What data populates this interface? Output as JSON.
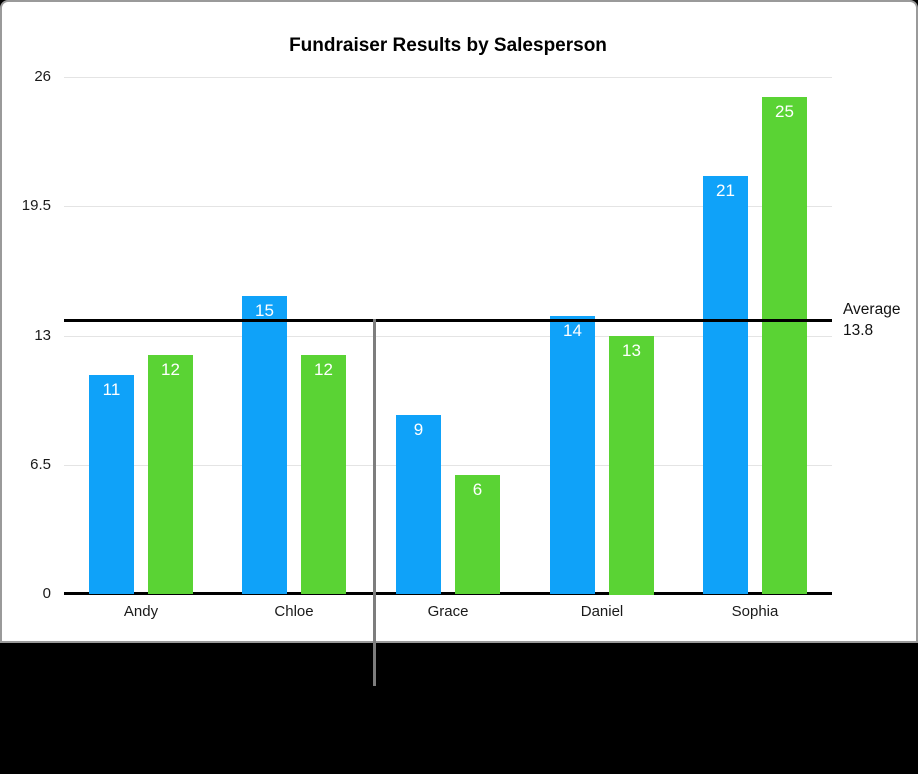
{
  "chart": {
    "title": "Fundraiser Results by Salesperson",
    "average_annotation": {
      "label": "Average",
      "value": "13.8"
    }
  },
  "chart_data": {
    "type": "bar",
    "title": "Fundraiser Results by Salesperson",
    "categories": [
      "Andy",
      "Chloe",
      "Grace",
      "Daniel",
      "Sophia"
    ],
    "series": [
      {
        "name": "blue",
        "color": "#0FA2F9",
        "values": [
          11,
          15,
          9,
          14,
          21
        ]
      },
      {
        "name": "green",
        "color": "#5AD334",
        "values": [
          12,
          12,
          6,
          13,
          25
        ]
      }
    ],
    "ylim": [
      0,
      26
    ],
    "y_ticks": [
      "0",
      "6.5",
      "13",
      "19.5",
      "26"
    ],
    "grid": true,
    "legend": "none",
    "value_labels": "inside-top-white",
    "average_line": {
      "value": 13.8,
      "label": "Average",
      "value_label": "13.8",
      "color": "#000000"
    }
  },
  "colors": {
    "bar_blue": "#0FA2F9",
    "bar_green": "#5AD334",
    "gridline": "#e4e4e4",
    "axis_line": "#000000",
    "card_border": "#9a9a9a",
    "callout_line": "#7d7d7d",
    "background_lower": "#000000"
  }
}
